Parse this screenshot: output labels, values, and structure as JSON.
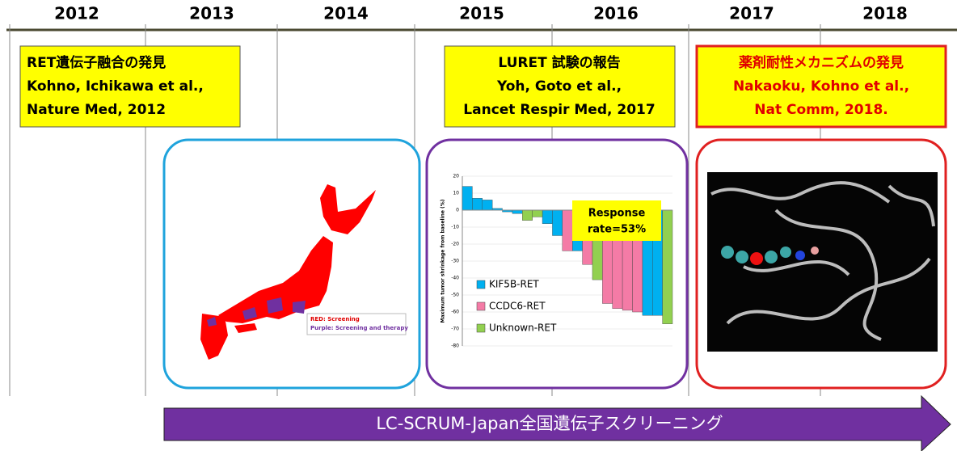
{
  "timeline": {
    "years": [
      "2012",
      "2013",
      "2014",
      "2015",
      "2016",
      "2017",
      "2018"
    ]
  },
  "boxes": [
    {
      "lines": [
        "RET遺伝子融合の発見",
        "Kohno, Ichikawa et al.,",
        "Nature Med, 2012"
      ]
    },
    {
      "lines": [
        "LURET 試験の報告",
        "Yoh, Goto et al.,",
        "Lancet Respir Med, 2017"
      ]
    },
    {
      "lines": [
        "薬剤耐性メカニズムの発見",
        "Nakaoku, Kohno et al.,",
        "Nat Comm, 2018."
      ]
    }
  ],
  "map": {
    "legend": [
      "RED: Screening",
      "Purple: Screening and therapy"
    ]
  },
  "chart_data": {
    "type": "bar",
    "ylabel": "Maximum tumor shrinkage from baseline (%)",
    "ylim": [
      -80,
      20
    ],
    "yticks": [
      20,
      10,
      0,
      -10,
      -20,
      -30,
      -40,
      -50,
      -60,
      -70,
      -80
    ],
    "series": [
      {
        "name": "KIF5B-RET",
        "color": "#00b0f0",
        "values": [
          14,
          7,
          6,
          1,
          -1,
          -2,
          null,
          null,
          -8,
          -15,
          null,
          -24,
          null,
          null,
          null,
          null,
          null,
          null,
          -62,
          -62,
          null
        ]
      },
      {
        "name": "CCDC6-RET",
        "color": "#f47ba6",
        "values": [
          null,
          null,
          null,
          null,
          null,
          null,
          null,
          null,
          null,
          null,
          -24,
          null,
          -32,
          null,
          -55,
          -58,
          -59,
          -60,
          null,
          null,
          null
        ]
      },
      {
        "name": "Unknown-RET",
        "color": "#92d050",
        "values": [
          null,
          null,
          null,
          null,
          null,
          null,
          -6,
          -4,
          null,
          null,
          null,
          null,
          null,
          -41,
          null,
          null,
          null,
          null,
          null,
          null,
          -67
        ]
      }
    ],
    "annotation": [
      "Response",
      "rate=53%"
    ]
  },
  "banner": {
    "label": "LC-SCRUM-Japan全国遺伝子スクリーニング"
  }
}
